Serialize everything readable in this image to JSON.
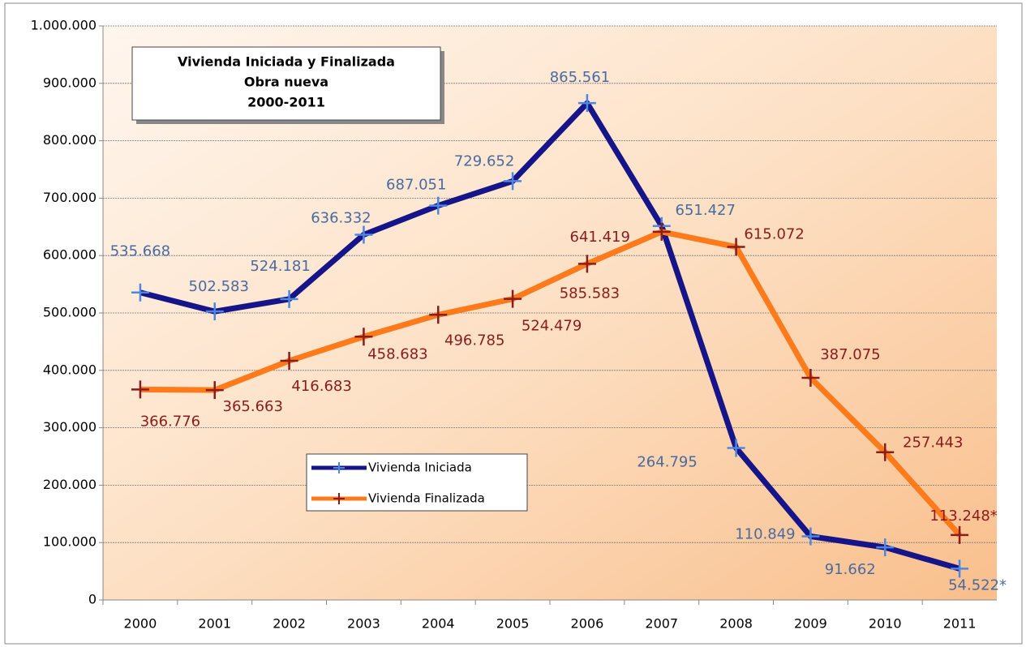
{
  "chart_data": {
    "type": "line",
    "title": [
      "Vivienda Iniciada y Finalizada",
      "Obra nueva",
      "2000-2011"
    ],
    "categories": [
      "2000",
      "2001",
      "2002",
      "2003",
      "2004",
      "2005",
      "2006",
      "2007",
      "2008",
      "2009",
      "2010",
      "2011"
    ],
    "series": [
      {
        "name": "Vivienda Iniciada",
        "color": "#151589",
        "marker_color": "#4f86e0",
        "label_color": "#4a6aa0",
        "values": [
          535668,
          502583,
          524181,
          636332,
          687051,
          729652,
          865561,
          651427,
          264795,
          110849,
          91662,
          54522
        ],
        "value_labels": [
          "535.668",
          "502.583",
          "524.181",
          "636.332",
          "687.051",
          "729.652",
          "865.561",
          "651.427",
          "264.795",
          "110.849",
          "91.662",
          "54.522*"
        ]
      },
      {
        "name": "Vivienda Finalizada",
        "color": "#ff7a1a",
        "marker_color": "#8a1c1c",
        "label_color": "#8a1c1c",
        "values": [
          366776,
          365663,
          416683,
          458683,
          496785,
          524479,
          585583,
          641419,
          615072,
          387075,
          257443,
          113248
        ],
        "value_labels": [
          "366.776",
          "365.663",
          "416.683",
          "458.683",
          "496.785",
          "524.479",
          "585.583",
          "641.419",
          "615.072",
          "387.075",
          "257.443",
          "113.248*"
        ]
      }
    ],
    "ylim": [
      0,
      1000000
    ],
    "yticks": [
      0,
      {
        "value": 100000,
        "label": "100.000"
      },
      {
        "value": 200000,
        "label": "200.000"
      },
      {
        "value": 300000,
        "label": "300.000"
      },
      {
        "value": 400000,
        "label": "400.000"
      },
      {
        "value": 500000,
        "label": "500.000"
      },
      {
        "value": 600000,
        "label": "600.000"
      },
      {
        "value": 700000,
        "label": "700.000"
      },
      {
        "value": 800000,
        "label": "800.000"
      },
      {
        "value": 900000,
        "label": "900.000"
      },
      {
        "value": 1000000,
        "label": "1.000.000"
      }
    ],
    "grid": true
  }
}
